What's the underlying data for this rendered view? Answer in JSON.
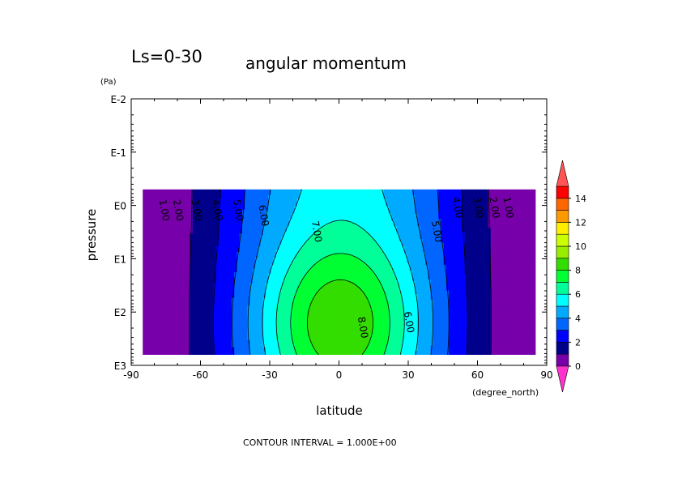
{
  "chart_data": {
    "type": "contour",
    "panel_label": "Ls=0-30",
    "title": "angular momentum",
    "xlabel": "latitude",
    "x_unit": "(degree_north)",
    "ylabel": "pressure",
    "y_unit": "(Pa)",
    "footer": "CONTOUR INTERVAL = 1.000E+00",
    "x_ticks": [
      -90,
      -60,
      -30,
      0,
      30,
      60,
      90
    ],
    "x_tick_labels": [
      "-90",
      "-60",
      "-30",
      "0",
      "30",
      "60",
      "90"
    ],
    "y_scale": "log",
    "y_ticks_log10": [
      -2,
      -1,
      0,
      1,
      2,
      3
    ],
    "y_tick_labels": [
      "E-2",
      "E-1",
      "E0",
      "E1",
      "E2",
      "E3"
    ],
    "xlim": [
      -90,
      90
    ],
    "ylim_pa": [
      0.01,
      1000
    ],
    "y_reversed": true,
    "data_extent": {
      "lat": [
        -85,
        85
      ],
      "log10_p": [
        -0.3,
        2.8
      ]
    },
    "contour_interval": 1.0,
    "contour_labels": [
      {
        "label": "1.00",
        "lat": -77,
        "log10_p": 0.1
      },
      {
        "label": "2.00",
        "lat": -71,
        "log10_p": 0.1
      },
      {
        "label": "3.00",
        "lat": -63,
        "log10_p": 0.1
      },
      {
        "label": "4.00",
        "lat": -54,
        "log10_p": 0.1
      },
      {
        "label": "5.00",
        "lat": -45,
        "log10_p": 0.1
      },
      {
        "label": "6.00",
        "lat": -34,
        "log10_p": 0.2
      },
      {
        "label": "7.00",
        "lat": -11,
        "log10_p": 0.5
      },
      {
        "label": "8.00",
        "lat": 9,
        "log10_p": 2.3
      },
      {
        "label": "6.00",
        "lat": 29,
        "log10_p": 2.2
      },
      {
        "label": "5.00",
        "lat": 41,
        "log10_p": 0.5
      },
      {
        "label": "4.00",
        "lat": 50,
        "log10_p": 0.05
      },
      {
        "label": "3.00",
        "lat": 59,
        "log10_p": 0.05
      },
      {
        "label": "2.00",
        "lat": 66,
        "log10_p": 0.05
      },
      {
        "label": "1.00",
        "lat": 72,
        "log10_p": 0.05
      }
    ],
    "colorbar": {
      "levels": [
        0,
        1,
        2,
        3,
        4,
        5,
        6,
        7,
        8,
        9,
        10,
        11,
        12,
        13,
        14
      ],
      "tick_labels": [
        "0",
        "2",
        "4",
        "6",
        "8",
        "10",
        "12",
        "14"
      ],
      "colors": [
        "#7700aa",
        "#00008b",
        "#0000ff",
        "#0066ff",
        "#00aaff",
        "#00ffff",
        "#00ff99",
        "#00ff33",
        "#33dd00",
        "#99ee00",
        "#ccff00",
        "#ffee00",
        "#ff9900",
        "#ff6600",
        "#ff0000"
      ],
      "over_color": "#ff5555",
      "under_color": "#ff33cc"
    }
  }
}
